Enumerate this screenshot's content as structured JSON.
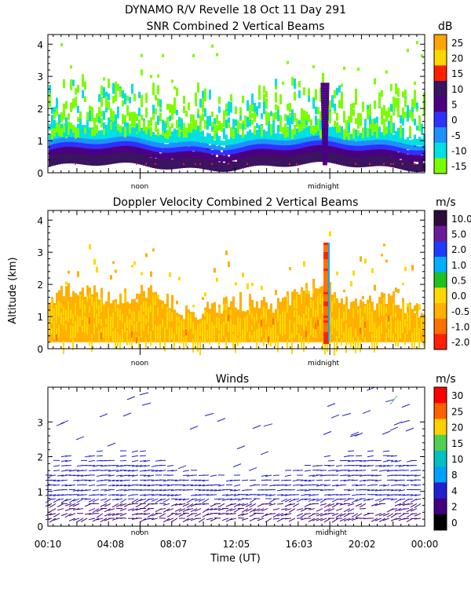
{
  "title": "DYNAMO R/V Revelle  18 Oct 11 Day 291",
  "panels": {
    "snr": {
      "title": "SNR Combined 2 Vertical Beams",
      "unit": "dB",
      "colorbar_labels": [
        "25",
        "20",
        "15",
        "10",
        "5",
        "0",
        "-5",
        "-10",
        "-15"
      ],
      "colorbar_colors": [
        "#ffa500",
        "#ffd700",
        "#ff2000",
        "#3a1460",
        "#4b0082",
        "#3030ff",
        "#1e90ff",
        "#00e0e0",
        "#7cfc00"
      ]
    },
    "doppler": {
      "title": "Doppler Velocity Combined 2 Vertical Beams",
      "unit": "m/s",
      "colorbar_labels": [
        "10.0",
        "5.0",
        "2.0",
        "1.0",
        "0.5",
        "0.0",
        "-0.5",
        "-1.0",
        "-2.0"
      ],
      "colorbar_colors": [
        "#2d0b3a",
        "#6a1b9a",
        "#1e3cff",
        "#00b0ff",
        "#20c020",
        "#ffd800",
        "#ffb000",
        "#ff7000",
        "#ff2000"
      ],
      "ylabel": "Altitude (km)"
    },
    "winds": {
      "title": "Winds",
      "unit": "m/s",
      "colorbar_labels": [
        "30",
        "25",
        "20",
        "15",
        "10",
        "8",
        "4",
        "2",
        "0"
      ],
      "colorbar_colors": [
        "#ff0000",
        "#ff6000",
        "#ffd000",
        "#50d050",
        "#00c0c0",
        "#00a0ff",
        "#2020d0",
        "#400080",
        "#000000"
      ]
    }
  },
  "xlabel": "Time (UT)",
  "markers": {
    "noon": "noon",
    "midnight": "midnight"
  },
  "chart_data": [
    {
      "type": "heatmap",
      "title": "SNR Combined 2 Vertical Beams",
      "unit": "dB",
      "ylim": [
        0,
        4.3
      ],
      "yticks": [
        0,
        1,
        2,
        3,
        4
      ],
      "xlim": [
        0.1667,
        24.0
      ],
      "x_markers": [
        {
          "label": "noon",
          "x": 6.0
        },
        {
          "label": "midnight",
          "x": 18.0
        }
      ],
      "colorbar": [
        "25",
        "20",
        "15",
        "10",
        "5",
        "0",
        "-5",
        "-10",
        "-15"
      ]
    },
    {
      "type": "heatmap",
      "title": "Doppler Velocity Combined 2 Vertical Beams",
      "unit": "m/s",
      "ylabel": "Altitude (km)",
      "ylim": [
        0,
        4.3
      ],
      "yticks": [
        0,
        1,
        2,
        3,
        4
      ],
      "xlim": [
        0.1667,
        24.0
      ],
      "x_markers": [
        {
          "label": "noon",
          "x": 6.0
        },
        {
          "label": "midnight",
          "x": 18.0
        }
      ],
      "colorbar": [
        "10.0",
        "5.0",
        "2.0",
        "1.0",
        "0.5",
        "0.0",
        "-0.5",
        "-1.0",
        "-2.0"
      ]
    },
    {
      "type": "scatter",
      "title": "Winds",
      "unit": "m/s",
      "ylim": [
        0,
        4.0
      ],
      "yticks": [
        0,
        1,
        2,
        3
      ],
      "xlim": [
        0.1667,
        24.0
      ],
      "xlabel": "Time (UT)",
      "xtick_labels": [
        "00:10",
        "04:08",
        "08:07",
        "12:05",
        "16:03",
        "20:02",
        "00:00"
      ],
      "xticks": [
        0.1667,
        4.1333,
        8.1167,
        12.0833,
        16.05,
        20.0333,
        24.0
      ],
      "x_markers": [
        {
          "label": "noon",
          "x": 6.0
        },
        {
          "label": "midnight",
          "x": 18.0
        }
      ],
      "colorbar": [
        "30",
        "25",
        "20",
        "15",
        "10",
        "8",
        "4",
        "2",
        "0"
      ]
    }
  ]
}
